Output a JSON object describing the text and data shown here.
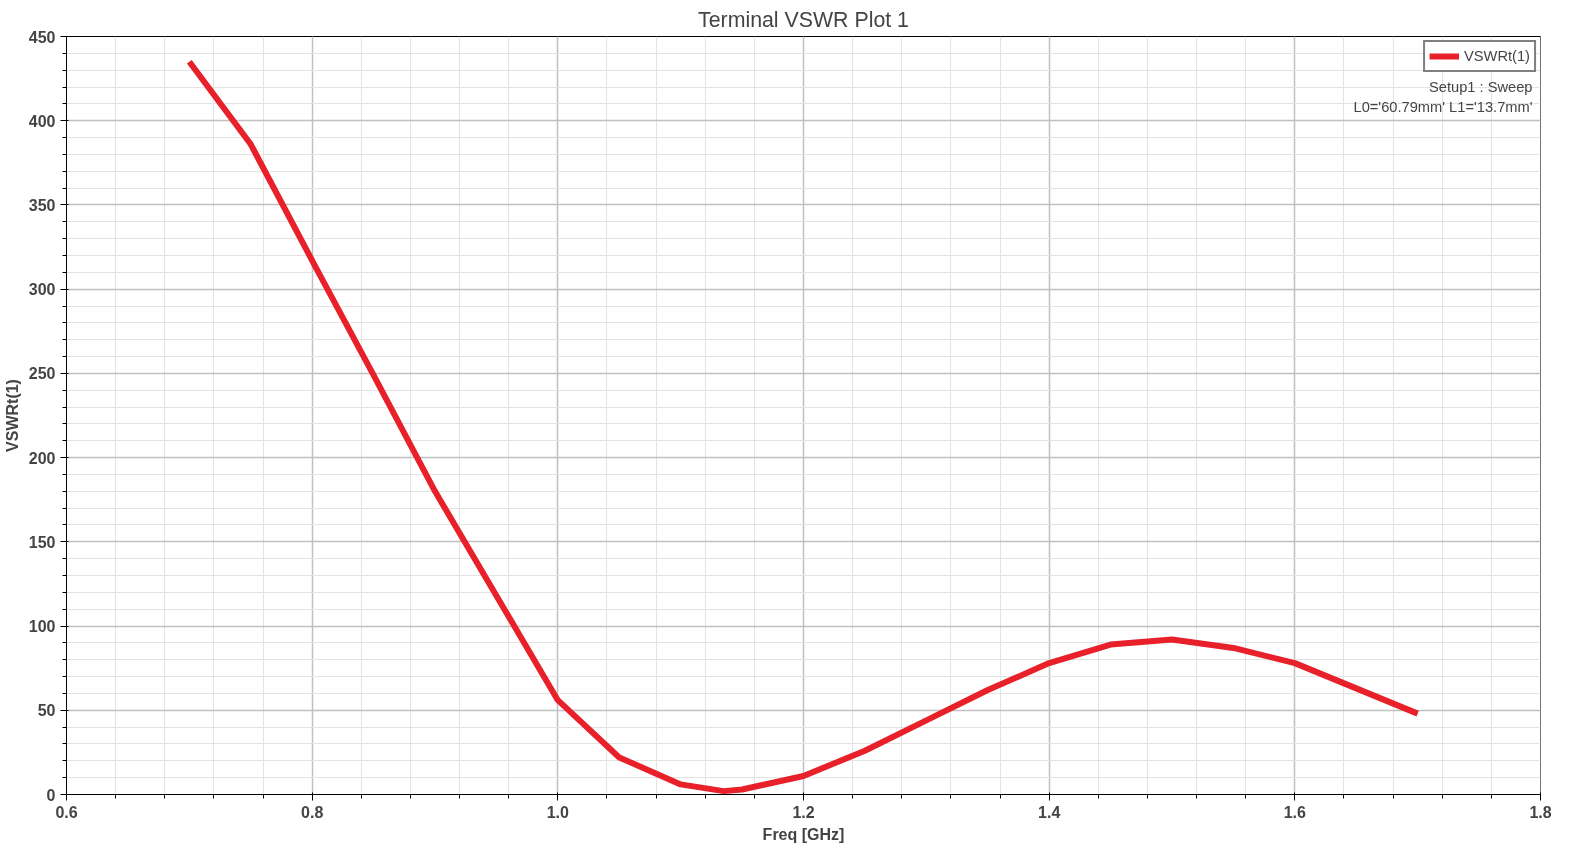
{
  "chart_data": {
    "type": "line",
    "title": "Terminal VSWR Plot 1",
    "xlabel": "Freq [GHz]",
    "ylabel": "VSWRt(1)",
    "x": [
      0.7,
      0.75,
      0.8,
      0.85,
      0.9,
      0.95,
      1.0,
      1.05,
      1.1,
      1.135,
      1.15,
      1.2,
      1.25,
      1.3,
      1.35,
      1.4,
      1.45,
      1.5,
      1.55,
      1.6,
      1.65,
      1.7
    ],
    "series": [
      {
        "name": "VSWRt(1)",
        "color": "#e8202a",
        "values": [
          435,
          386,
          317,
          249,
          180,
          118,
          56,
          22,
          6,
          2,
          3,
          11,
          26,
          44,
          62,
          78,
          89,
          92,
          87,
          78,
          63,
          48
        ]
      }
    ],
    "annotations": [
      "Setup1 : Sweep",
      "L0='60.79mm' L1='13.7mm'"
    ],
    "xlim": [
      0.6,
      1.8
    ],
    "xticks": [
      0.6,
      0.8,
      {
        "value": 1.0,
        "label": "1.0"
      },
      1.2,
      1.4,
      1.6,
      1.8
    ],
    "ylim": [
      0,
      450
    ],
    "yticks": [
      0,
      50,
      100,
      150,
      200,
      250,
      300,
      350,
      400,
      450
    ],
    "grid": true,
    "legend": "top right",
    "marker": "none",
    "line_style": "solid"
  }
}
